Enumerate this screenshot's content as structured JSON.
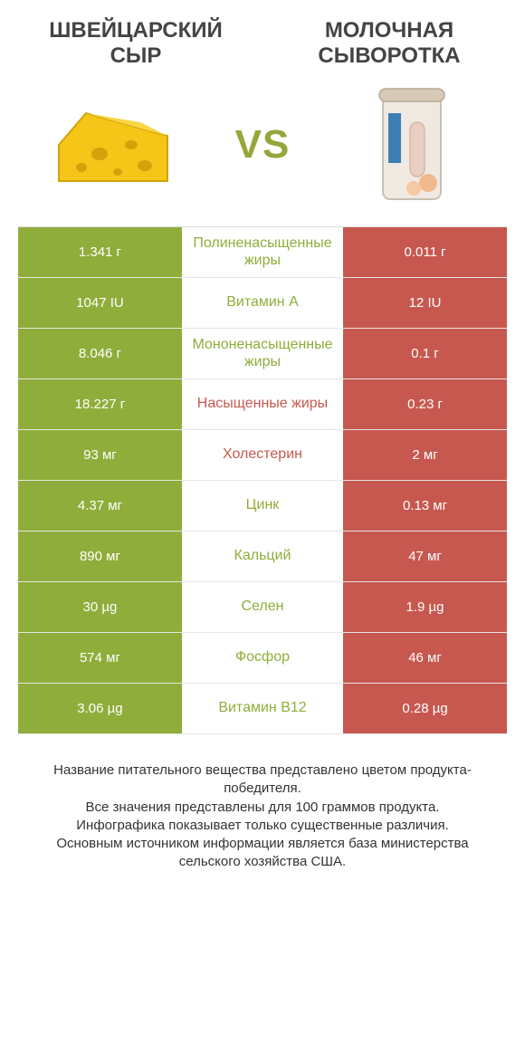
{
  "titles": {
    "left": "ШВЕЙЦАРСКИЙ СЫР",
    "right": "МОЛОЧНАЯ СЫВОРОТКА"
  },
  "vs": "VS",
  "colors": {
    "left_bg": "#8fad3a",
    "right_bg": "#c7584f",
    "mid_winner_left": "#8fad3a",
    "mid_winner_right": "#c7584f",
    "border": "#e5e5e5",
    "title_text": "#444444"
  },
  "typography": {
    "title_fontsize": 24,
    "cell_fontsize": 15,
    "mid_fontsize": 16,
    "vs_fontsize": 44,
    "footer_fontsize": 15
  },
  "rows": [
    {
      "nutrient": "Полиненасыщенные жиры",
      "left": "1.341 г",
      "right": "0.011 г",
      "winner": "left"
    },
    {
      "nutrient": "Витамин A",
      "left": "1047 IU",
      "right": "12 IU",
      "winner": "left"
    },
    {
      "nutrient": "Мононенасыщенные жиры",
      "left": "8.046 г",
      "right": "0.1 г",
      "winner": "left"
    },
    {
      "nutrient": "Насыщенные жиры",
      "left": "18.227 г",
      "right": "0.23 г",
      "winner": "right"
    },
    {
      "nutrient": "Холестерин",
      "left": "93 мг",
      "right": "2 мг",
      "winner": "right"
    },
    {
      "nutrient": "Цинк",
      "left": "4.37 мг",
      "right": "0.13 мг",
      "winner": "left"
    },
    {
      "nutrient": "Кальций",
      "left": "890 мг",
      "right": "47 мг",
      "winner": "left"
    },
    {
      "nutrient": "Селен",
      "left": "30 µg",
      "right": "1.9 µg",
      "winner": "left"
    },
    {
      "nutrient": "Фосфор",
      "left": "574 мг",
      "right": "46 мг",
      "winner": "left"
    },
    {
      "nutrient": "Витамин B12",
      "left": "3.06 µg",
      "right": "0.28 µg",
      "winner": "left"
    }
  ],
  "footer": "Название питательного вещества представлено цветом продукта-победителя.\nВсе значения представлены для 100 граммов продукта.\nИнфографика показывает только существенные различия.\nОсновным источником информации является база министерства сельского хозяйства США."
}
